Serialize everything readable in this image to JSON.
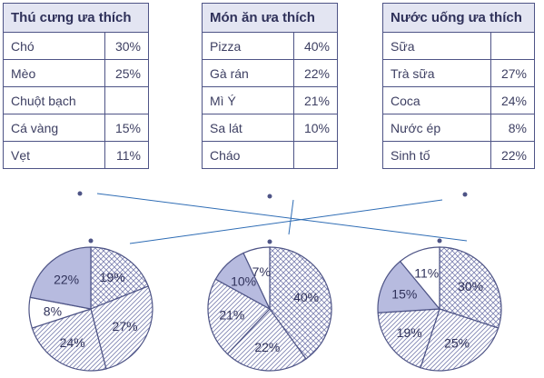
{
  "colors": {
    "line": "#4e5486",
    "header_bg": "#e3e5f2",
    "shaded": "#b7bbdf",
    "connector": "#2f6db5"
  },
  "tables": [
    {
      "title": "Thú cưng ưa thích",
      "rows": [
        {
          "label": "Chó",
          "value": "30%"
        },
        {
          "label": "Mèo",
          "value": "25%"
        },
        {
          "label": "Chuột bạch",
          "value": ""
        },
        {
          "label": "Cá vàng",
          "value": "15%"
        },
        {
          "label": "Vẹt",
          "value": "11%"
        }
      ]
    },
    {
      "title": "Món ăn ưa thích",
      "rows": [
        {
          "label": "Pizza",
          "value": "40%"
        },
        {
          "label": "Gà rán",
          "value": "22%"
        },
        {
          "label": "Mì Ý",
          "value": "21%"
        },
        {
          "label": "Sa lát",
          "value": "10%"
        },
        {
          "label": "Cháo",
          "value": ""
        }
      ]
    },
    {
      "title": "Nước uống ưa thích",
      "rows": [
        {
          "label": "Sữa",
          "value": ""
        },
        {
          "label": "Trà sữa",
          "value": "27%"
        },
        {
          "label": "Coca",
          "value": "24%"
        },
        {
          "label": "Nước ép",
          "value": "8%"
        },
        {
          "label": "Sinh tố",
          "value": "22%"
        }
      ]
    }
  ],
  "chart_data": [
    {
      "type": "pie",
      "slices": [
        {
          "label": "19%",
          "value": 19,
          "fill": "crosshatch"
        },
        {
          "label": "27%",
          "value": 27,
          "fill": "diagonal"
        },
        {
          "label": "24%",
          "value": 24,
          "fill": "diagonal"
        },
        {
          "label": "8%",
          "value": 8,
          "fill": "white"
        },
        {
          "label": "22%",
          "value": 22,
          "fill": "shaded"
        }
      ]
    },
    {
      "type": "pie",
      "slices": [
        {
          "label": "40%",
          "value": 40,
          "fill": "crosshatch"
        },
        {
          "label": "22%",
          "value": 22,
          "fill": "diagonal"
        },
        {
          "label": "21%",
          "value": 21,
          "fill": "diagonal"
        },
        {
          "label": "10%",
          "value": 10,
          "fill": "shaded"
        },
        {
          "label": "7%",
          "value": 7,
          "fill": "white"
        }
      ]
    },
    {
      "type": "pie",
      "slices": [
        {
          "label": "30%",
          "value": 30,
          "fill": "crosshatch"
        },
        {
          "label": "25%",
          "value": 25,
          "fill": "diagonal"
        },
        {
          "label": "19%",
          "value": 19,
          "fill": "diagonal"
        },
        {
          "label": "15%",
          "value": 15,
          "fill": "shaded"
        },
        {
          "label": "11%",
          "value": 11,
          "fill": "white"
        }
      ]
    }
  ]
}
